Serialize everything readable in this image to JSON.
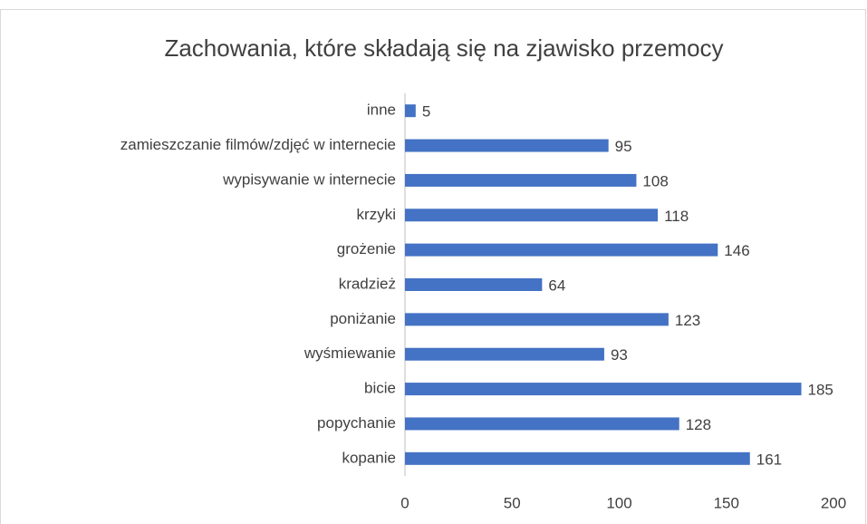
{
  "chart_data": {
    "type": "bar",
    "orientation": "horizontal",
    "title": "Zachowania, które składają się na zjawisko przemocy",
    "categories": [
      "inne",
      "zamieszczanie filmów/zdjęć w internecie",
      "wypisywanie w internecie",
      "krzyki",
      "grożenie",
      "kradzież",
      "poniżanie",
      "wyśmiewanie",
      "bicie",
      "popychanie",
      "kopanie"
    ],
    "values": [
      5,
      95,
      108,
      118,
      146,
      64,
      123,
      93,
      185,
      128,
      161
    ],
    "color": "#4472c4",
    "xlim": [
      0,
      200
    ],
    "xticks": [
      0,
      50,
      100,
      150,
      200
    ],
    "grid": false,
    "data_labels": true
  }
}
